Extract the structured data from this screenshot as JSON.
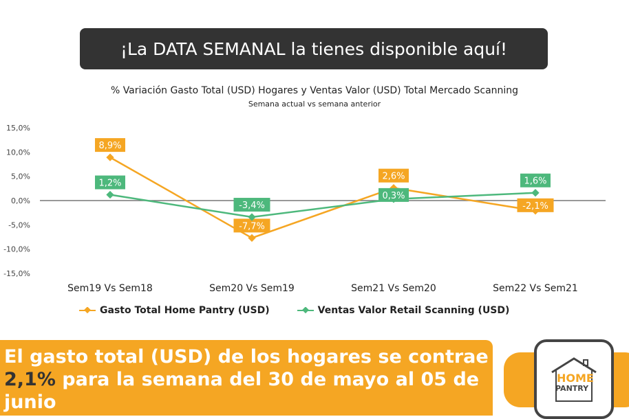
{
  "banner": "¡La DATA SEMANAL la tienes disponible aquí!",
  "chart_data": {
    "type": "line",
    "title": "% Variación Gasto Total (USD) Hogares y Ventas Valor (USD) Total Mercado Scanning",
    "subtitle": "Semana actual vs semana anterior",
    "categories": [
      "Sem19 Vs Sem18",
      "Sem20 Vs Sem19",
      "Sem21 Vs Sem20",
      "Sem22 Vs Sem21"
    ],
    "yticks": [
      "15,0%",
      "10,0%",
      "5,0%",
      "0,0%",
      "-5,0%",
      "-10,0%",
      "-15,0%"
    ],
    "ylim": [
      -15,
      15
    ],
    "legend_position": "bottom",
    "series": [
      {
        "name": "Gasto Total Home Pantry (USD)",
        "color": "#F5A623",
        "values": [
          8.9,
          -7.7,
          2.6,
          -2.1
        ],
        "labels": [
          "8,9%",
          "-7,7%",
          "2,6%",
          "-2,1%"
        ]
      },
      {
        "name": "Ventas Valor Retail Scanning (USD)",
        "color": "#4DB87C",
        "values": [
          1.2,
          -3.4,
          0.3,
          1.6
        ],
        "labels": [
          "1,2%",
          "-3,4%",
          "0,3%",
          "1,6%"
        ]
      }
    ]
  },
  "message": {
    "part1": "El gasto total (USD) de los hogares se contrae ",
    "highlight": "2,1%",
    "part2": " para la semana del 30 de mayo al 05 de junio"
  },
  "logo": {
    "line1": "HOME",
    "line2": "PANTRY"
  }
}
